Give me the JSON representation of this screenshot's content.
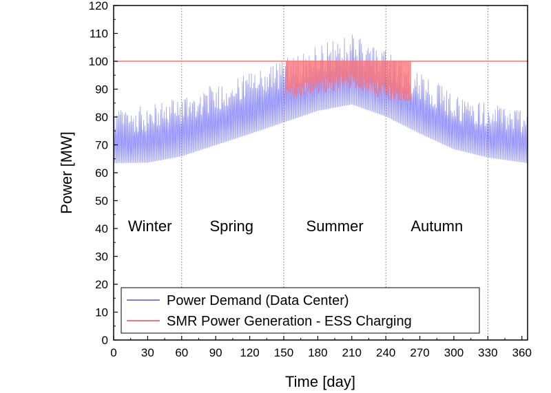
{
  "chart_data": {
    "type": "line",
    "title": "",
    "xlabel": "Time [day]",
    "ylabel": "Power [MW]",
    "xlim": [
      0,
      365
    ],
    "ylim": [
      0,
      120
    ],
    "xticks": [
      0,
      30,
      60,
      90,
      120,
      150,
      180,
      210,
      240,
      270,
      300,
      330,
      360
    ],
    "yticks": [
      0,
      10,
      20,
      30,
      40,
      50,
      60,
      70,
      80,
      90,
      100,
      110,
      120
    ],
    "season_dividers": [
      60,
      150,
      240,
      330
    ],
    "seasons": [
      {
        "label": "Winter",
        "x": 32
      },
      {
        "label": "Spring",
        "x": 104
      },
      {
        "label": "Summer",
        "x": 195
      },
      {
        "label": "Autumn",
        "x": 285
      }
    ],
    "legend_position": "bottom-left",
    "series": [
      {
        "name": "Power Demand (Data Center)",
        "color": "#7b7bff",
        "envelope": {
          "days": [
            0,
            30,
            60,
            90,
            120,
            150,
            180,
            210,
            240,
            270,
            300,
            330,
            365
          ],
          "min": [
            60,
            60,
            62,
            66,
            70,
            74,
            78,
            80,
            76,
            70,
            65,
            62,
            60
          ],
          "max": [
            83,
            84,
            88,
            92,
            96,
            101,
            106,
            110,
            104,
            97,
            88,
            85,
            83
          ],
          "mean": [
            70,
            70,
            73,
            78,
            82,
            87,
            90,
            92,
            88,
            83,
            76,
            72,
            70
          ]
        }
      },
      {
        "name": "SMR Power Generation - ESS Charging",
        "color": "#ff7070",
        "constant": 100,
        "charging_days": [
          152,
          262
        ]
      }
    ]
  }
}
